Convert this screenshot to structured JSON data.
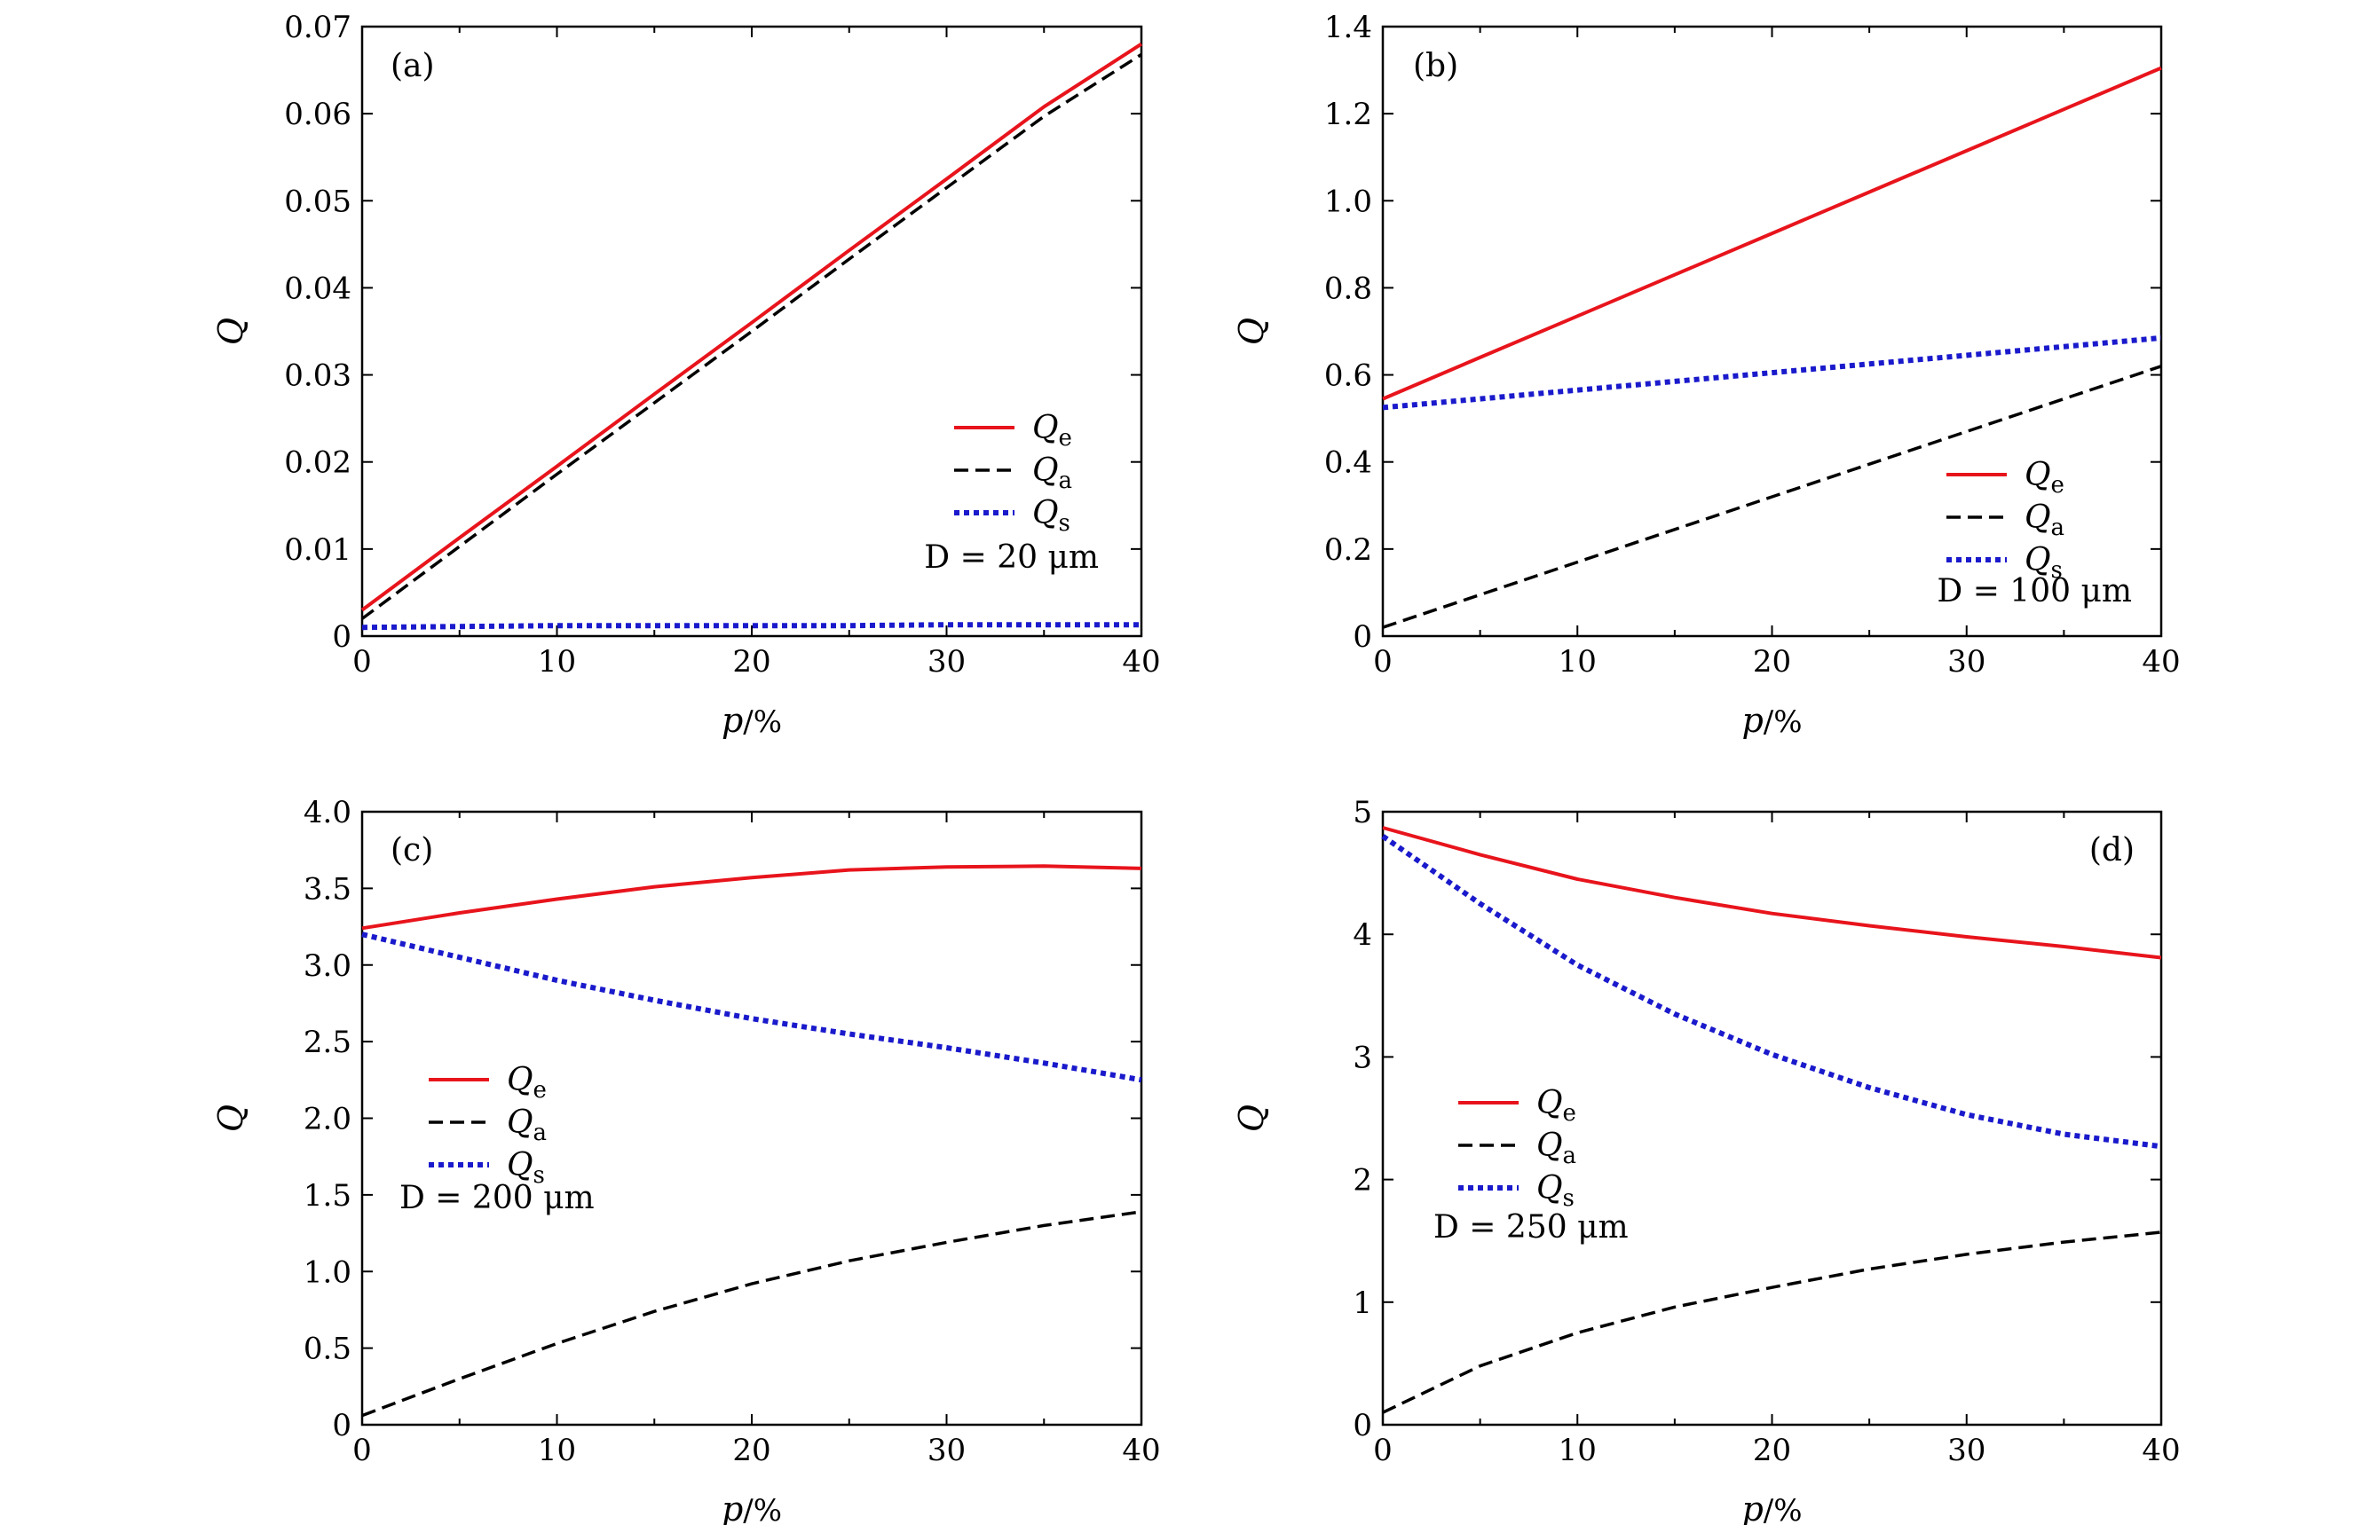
{
  "colors": {
    "Qe": "#e8141c",
    "Qa": "#000000",
    "Qs": "#1a1acc"
  },
  "chart_data": [
    {
      "type": "line",
      "panel_label": "(a)",
      "xlabel_var": "p",
      "xlabel_unit": "/%",
      "ylabel": "Q",
      "xlim": [
        0,
        40
      ],
      "ylim": [
        0,
        0.07
      ],
      "xticks": [
        0,
        10,
        20,
        30,
        40
      ],
      "xtick_labels": [
        "0",
        "10",
        "20",
        "30",
        "40"
      ],
      "yticks": [
        0,
        0.01,
        0.02,
        0.03,
        0.04,
        0.05,
        0.06,
        0.07
      ],
      "ytick_labels": [
        "0",
        "0.01",
        "0.02",
        "0.03",
        "0.04",
        "0.05",
        "0.06",
        "0.07"
      ],
      "legend_position": "right",
      "annotation": "D = 20 μm",
      "series": [
        {
          "name": "Qe",
          "style": "solid",
          "x": [
            0,
            5,
            10,
            15,
            20,
            25,
            30,
            35,
            40
          ],
          "y": [
            0.003,
            0.0113,
            0.0195,
            0.0278,
            0.036,
            0.0443,
            0.0525,
            0.0608,
            0.068
          ]
        },
        {
          "name": "Qa",
          "style": "dashed",
          "x": [
            0,
            5,
            10,
            15,
            20,
            25,
            30,
            35,
            40
          ],
          "y": [
            0.002,
            0.0103,
            0.0186,
            0.0268,
            0.035,
            0.0433,
            0.0515,
            0.0597,
            0.0668
          ]
        },
        {
          "name": "Qs",
          "style": "dotted",
          "x": [
            0,
            5,
            10,
            15,
            20,
            25,
            30,
            35,
            40
          ],
          "y": [
            0.001,
            0.0011,
            0.0012,
            0.0012,
            0.0012,
            0.0012,
            0.0013,
            0.0013,
            0.0013
          ]
        }
      ]
    },
    {
      "type": "line",
      "panel_label": "(b)",
      "xlabel_var": "p",
      "xlabel_unit": "/%",
      "ylabel": "Q",
      "xlim": [
        0,
        40
      ],
      "ylim": [
        0,
        1.4
      ],
      "xticks": [
        0,
        10,
        20,
        30,
        40
      ],
      "xtick_labels": [
        "0",
        "10",
        "20",
        "30",
        "40"
      ],
      "yticks": [
        0,
        0.2,
        0.4,
        0.6,
        0.8,
        1.0,
        1.2,
        1.4
      ],
      "ytick_labels": [
        "0",
        "0.2",
        "0.4",
        "0.6",
        "0.8",
        "1.0",
        "1.2",
        "1.4"
      ],
      "legend_position": "bottom-right",
      "annotation": "D = 100 μm",
      "series": [
        {
          "name": "Qe",
          "style": "solid",
          "x": [
            0,
            5,
            10,
            15,
            20,
            25,
            30,
            35,
            40
          ],
          "y": [
            0.545,
            0.64,
            0.735,
            0.83,
            0.925,
            1.02,
            1.115,
            1.21,
            1.305
          ]
        },
        {
          "name": "Qa",
          "style": "dashed",
          "x": [
            0,
            5,
            10,
            15,
            20,
            25,
            30,
            35,
            40
          ],
          "y": [
            0.02,
            0.095,
            0.17,
            0.245,
            0.32,
            0.395,
            0.47,
            0.545,
            0.62
          ]
        },
        {
          "name": "Qs",
          "style": "dotted",
          "x": [
            0,
            5,
            10,
            15,
            20,
            25,
            30,
            35,
            40
          ],
          "y": [
            0.525,
            0.545,
            0.565,
            0.585,
            0.605,
            0.625,
            0.645,
            0.665,
            0.685
          ]
        }
      ]
    },
    {
      "type": "line",
      "panel_label": "(c)",
      "xlabel_var": "p",
      "xlabel_unit": "/%",
      "ylabel": "Q",
      "xlim": [
        0,
        40
      ],
      "ylim": [
        0,
        4.0
      ],
      "xticks": [
        0,
        10,
        20,
        30,
        40
      ],
      "xtick_labels": [
        "0",
        "10",
        "20",
        "30",
        "40"
      ],
      "yticks": [
        0,
        0.5,
        1.0,
        1.5,
        2.0,
        2.5,
        3.0,
        3.5,
        4.0
      ],
      "ytick_labels": [
        "0",
        "0.5",
        "1.0",
        "1.5",
        "2.0",
        "2.5",
        "3.0",
        "3.5",
        "4.0"
      ],
      "legend_position": "left",
      "annotation": "D = 200 μm",
      "series": [
        {
          "name": "Qe",
          "style": "solid",
          "x": [
            0,
            5,
            10,
            15,
            20,
            25,
            30,
            35,
            40
          ],
          "y": [
            3.24,
            3.34,
            3.43,
            3.51,
            3.57,
            3.62,
            3.64,
            3.645,
            3.63
          ]
        },
        {
          "name": "Qa",
          "style": "dashed",
          "x": [
            0,
            5,
            10,
            15,
            20,
            25,
            30,
            35,
            40
          ],
          "y": [
            0.06,
            0.3,
            0.53,
            0.74,
            0.92,
            1.07,
            1.19,
            1.3,
            1.39
          ]
        },
        {
          "name": "Qs",
          "style": "dotted",
          "x": [
            0,
            5,
            10,
            15,
            20,
            25,
            30,
            35,
            40
          ],
          "y": [
            3.2,
            3.05,
            2.9,
            2.77,
            2.65,
            2.55,
            2.46,
            2.36,
            2.25
          ]
        }
      ]
    },
    {
      "type": "line",
      "panel_label": "(d)",
      "xlabel_var": "p",
      "xlabel_unit": "/%",
      "ylabel": "Q",
      "xlim": [
        0,
        40
      ],
      "ylim": [
        0,
        5
      ],
      "xticks": [
        0,
        10,
        20,
        30,
        40
      ],
      "xtick_labels": [
        "0",
        "10",
        "20",
        "30",
        "40"
      ],
      "yticks": [
        0,
        1,
        2,
        3,
        4,
        5
      ],
      "ytick_labels": [
        "0",
        "1",
        "2",
        "3",
        "4",
        "5"
      ],
      "legend_position": "left",
      "annotation": "D = 250 μm",
      "series": [
        {
          "name": "Qe",
          "style": "solid",
          "x": [
            0,
            5,
            10,
            15,
            20,
            25,
            30,
            35,
            40
          ],
          "y": [
            4.87,
            4.65,
            4.45,
            4.3,
            4.17,
            4.07,
            3.98,
            3.9,
            3.81
          ]
        },
        {
          "name": "Qa",
          "style": "dashed",
          "x": [
            0,
            5,
            10,
            15,
            20,
            25,
            30,
            35,
            40
          ],
          "y": [
            0.1,
            0.48,
            0.75,
            0.96,
            1.12,
            1.27,
            1.39,
            1.49,
            1.57
          ]
        },
        {
          "name": "Qs",
          "style": "dotted",
          "x": [
            0,
            5,
            10,
            15,
            20,
            25,
            30,
            35,
            40
          ],
          "y": [
            4.8,
            4.25,
            3.75,
            3.35,
            3.02,
            2.75,
            2.53,
            2.37,
            2.27
          ]
        }
      ]
    }
  ]
}
